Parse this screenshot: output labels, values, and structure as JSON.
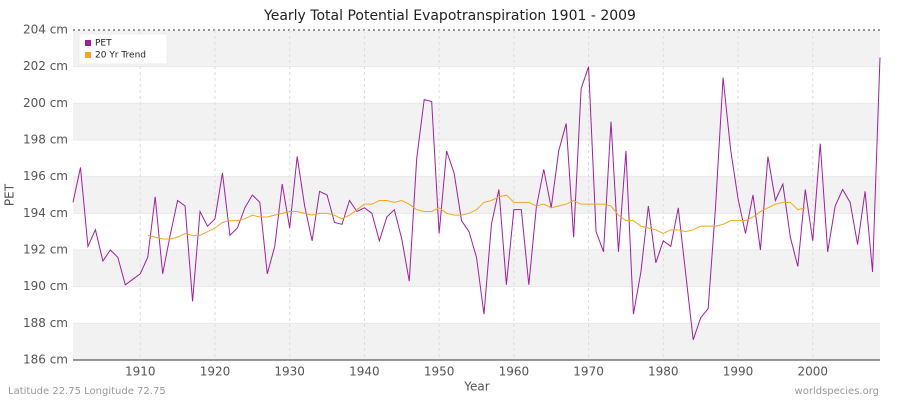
{
  "chart_data": {
    "type": "line",
    "title": "Yearly Total Potential Evapotranspiration 1901 - 2009",
    "xlabel": "Year",
    "ylabel": "PET",
    "footer_left": "Latitude 22.75 Longitude 72.75",
    "footer_right": "worldspecies.org",
    "x": [
      1901,
      1902,
      1903,
      1904,
      1905,
      1906,
      1907,
      1908,
      1909,
      1910,
      1911,
      1912,
      1913,
      1914,
      1915,
      1916,
      1917,
      1918,
      1919,
      1920,
      1921,
      1922,
      1923,
      1924,
      1925,
      1926,
      1927,
      1928,
      1929,
      1930,
      1931,
      1932,
      1933,
      1934,
      1935,
      1936,
      1937,
      1938,
      1939,
      1940,
      1941,
      1942,
      1943,
      1944,
      1945,
      1946,
      1947,
      1948,
      1949,
      1950,
      1951,
      1952,
      1953,
      1954,
      1955,
      1956,
      1957,
      1958,
      1959,
      1960,
      1961,
      1962,
      1963,
      1964,
      1965,
      1966,
      1967,
      1968,
      1969,
      1970,
      1971,
      1972,
      1973,
      1974,
      1975,
      1976,
      1977,
      1978,
      1979,
      1980,
      1981,
      1982,
      1983,
      1984,
      1985,
      1986,
      1987,
      1988,
      1989,
      1990,
      1991,
      1992,
      1993,
      1994,
      1995,
      1996,
      1997,
      1998,
      1999,
      2000,
      2001,
      2002,
      2003,
      2004,
      2005,
      2006,
      2007,
      2008,
      2009
    ],
    "series": [
      {
        "name": "PET",
        "color": "#a020a0",
        "values": [
          194.6,
          196.5,
          192.2,
          193.1,
          191.4,
          192.0,
          191.6,
          190.1,
          190.4,
          190.7,
          191.6,
          194.9,
          190.7,
          192.8,
          194.7,
          194.4,
          189.2,
          194.1,
          193.3,
          193.7,
          196.2,
          192.8,
          193.2,
          194.3,
          195.0,
          194.6,
          190.7,
          192.2,
          195.6,
          193.2,
          197.1,
          194.4,
          192.5,
          195.2,
          195.0,
          193.5,
          193.4,
          194.7,
          194.1,
          194.3,
          194.0,
          192.5,
          193.8,
          194.2,
          192.6,
          190.3,
          197.0,
          200.2,
          200.1,
          192.9,
          197.4,
          196.2,
          193.6,
          193.0,
          191.6,
          188.5,
          193.4,
          195.3,
          190.1,
          194.2,
          194.2,
          190.1,
          194.3,
          196.4,
          194.3,
          197.4,
          198.9,
          192.7,
          200.8,
          202.0,
          193.0,
          191.9,
          199.0,
          191.9,
          197.4,
          188.5,
          190.8,
          194.4,
          191.3,
          192.5,
          192.2,
          194.3,
          190.7,
          187.1,
          188.3,
          188.8,
          194.4,
          201.4,
          197.5,
          194.8,
          192.9,
          195.0,
          192.0,
          197.1,
          194.7,
          195.6,
          192.7,
          191.1,
          195.3,
          192.5,
          197.8,
          191.9,
          194.4,
          195.3,
          194.6,
          192.3,
          195.2,
          190.8,
          202.5
        ]
      },
      {
        "name": "20 Yr Trend",
        "color": "#f5a623",
        "values": [
          null,
          null,
          null,
          null,
          null,
          null,
          null,
          null,
          null,
          null,
          192.8,
          192.7,
          192.6,
          192.6,
          192.7,
          192.9,
          192.8,
          192.8,
          193.0,
          193.2,
          193.5,
          193.6,
          193.6,
          193.7,
          193.9,
          193.8,
          193.8,
          193.9,
          194.0,
          194.1,
          194.1,
          194.0,
          193.9,
          194.0,
          194.0,
          193.9,
          193.7,
          193.9,
          194.2,
          194.5,
          194.5,
          194.7,
          194.7,
          194.6,
          194.7,
          194.5,
          194.2,
          194.1,
          194.1,
          194.3,
          194.0,
          193.9,
          193.9,
          194.0,
          194.2,
          194.6,
          194.7,
          194.9,
          195.0,
          194.6,
          194.6,
          194.6,
          194.4,
          194.5,
          194.3,
          194.4,
          194.5,
          194.7,
          194.5,
          194.5,
          194.5,
          194.5,
          194.4,
          193.9,
          193.6,
          193.6,
          193.3,
          193.2,
          193.1,
          192.9,
          193.1,
          193.1,
          193.0,
          193.1,
          193.3,
          193.3,
          193.3,
          193.4,
          193.6,
          193.6,
          193.6,
          193.8,
          194.1,
          194.3,
          194.5,
          194.6,
          194.6,
          194.2,
          194.3,
          null,
          null,
          null,
          null,
          null,
          null,
          null,
          null,
          null,
          null
        ]
      }
    ],
    "xlim": [
      1901,
      2009
    ],
    "xticks": [
      1910,
      1920,
      1930,
      1940,
      1950,
      1960,
      1970,
      1980,
      1990,
      2000
    ],
    "ylim": [
      186,
      204
    ],
    "yticks": [
      {
        "value": 186,
        "label": "186 cm"
      },
      {
        "value": 188,
        "label": "188 cm"
      },
      {
        "value": 190,
        "label": "190 cm"
      },
      {
        "value": 192,
        "label": "192 cm"
      },
      {
        "value": 194,
        "label": "194 cm"
      },
      {
        "value": 196,
        "label": "196 cm"
      },
      {
        "value": 198,
        "label": "198 cm"
      },
      {
        "value": 200,
        "label": "200 cm"
      },
      {
        "value": 202,
        "label": "202 cm"
      },
      {
        "value": 204,
        "label": "204 cm"
      }
    ],
    "grid": true,
    "legend": "upper left"
  }
}
